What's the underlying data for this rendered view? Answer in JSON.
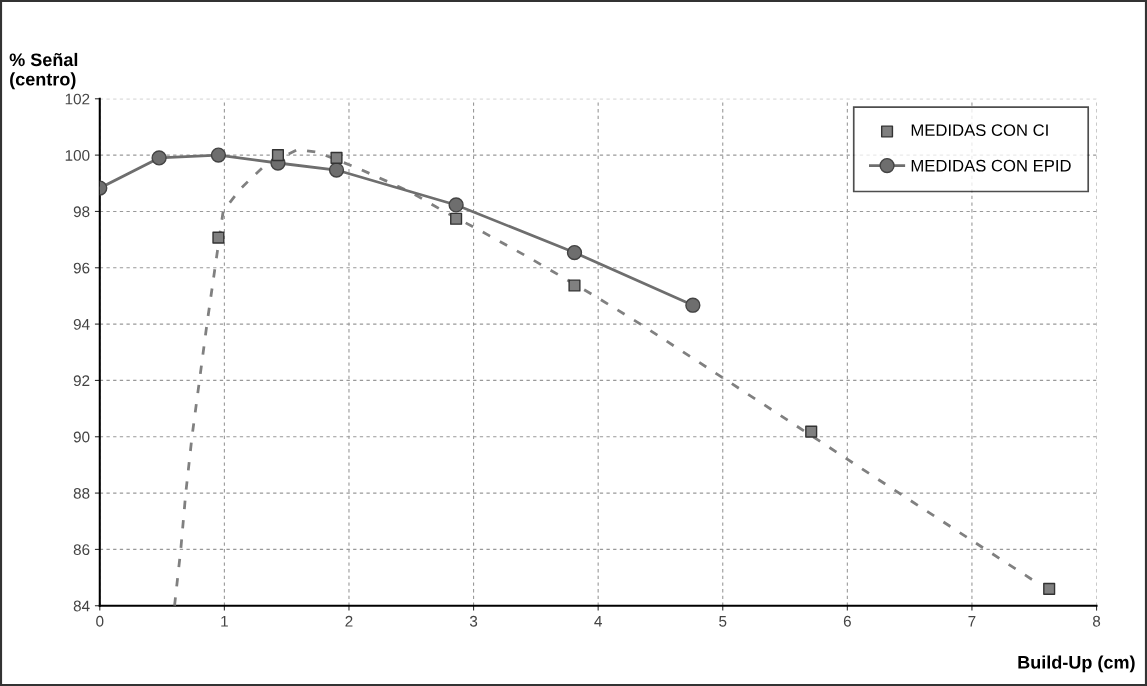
{
  "chart_data": {
    "type": "line",
    "ylabel": "% Señal\n(centro)",
    "xlabel": "Build-Up (cm)",
    "xlim": [
      0,
      8
    ],
    "xticks": [
      0,
      1,
      2,
      3,
      4,
      5,
      6,
      7,
      8
    ],
    "ylim": [
      84,
      102
    ],
    "yticks": [
      84,
      86,
      88,
      90,
      92,
      94,
      96,
      98,
      100,
      102
    ],
    "grid": true,
    "legend": "top right",
    "series": [
      {
        "name": "MEDIDAS CON CI",
        "type": "scatter",
        "marker": "square",
        "color": "#808080",
        "x": [
          0.952,
          1.43,
          1.9,
          2.86,
          3.81,
          5.71,
          7.62
        ],
        "values": [
          97.07,
          100.0,
          99.9,
          97.74,
          95.37,
          90.18,
          84.6
        ]
      },
      {
        "type": "line",
        "line_style": "dashed",
        "marker": "none",
        "color": "#808080",
        "x": [
          0.6,
          0.65,
          0.69,
          0.74,
          0.8,
          0.86,
          0.99,
          1.12,
          1.22,
          1.33,
          1.59,
          1.75,
          2.09,
          2.49,
          2.74,
          3.04,
          3.43,
          3.98,
          4.34,
          5.31,
          5.98,
          6.45,
          7.04,
          7.51
        ],
        "values": [
          84,
          86,
          88,
          90,
          92,
          94,
          98,
          98.76,
          99.2,
          99.65,
          100.2,
          100.1,
          99.5,
          98.7,
          98.06,
          97.35,
          96.4,
          94.98,
          94.0,
          91.2,
          89.26,
          87.9,
          86.2,
          84.85
        ]
      },
      {
        "name": "MEDIDAS CON EPID",
        "type": "line",
        "line_style": "solid",
        "marker": "circle",
        "color": "#6e6e6e",
        "x": [
          0,
          0.476,
          0.952,
          1.43,
          1.9,
          2.86,
          3.81,
          4.76
        ],
        "values": [
          98.83,
          99.9,
          100.0,
          99.72,
          99.47,
          98.23,
          96.54,
          94.67
        ]
      }
    ]
  }
}
